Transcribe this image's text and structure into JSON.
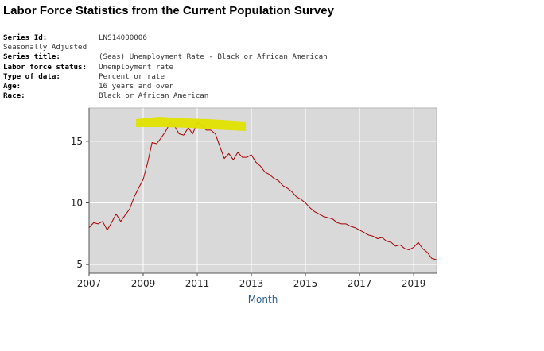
{
  "page": {
    "title": "Labor Force Statistics from the Current Population Survey"
  },
  "series_info": {
    "series_id_label": "Series Id:",
    "series_id": "LNS14000006",
    "adjustment": "Seasonally Adjusted",
    "series_title_label": "Series title:",
    "series_title": "(Seas) Unemployment Rate - Black or African American",
    "lf_status_label": "Labor force status:",
    "lf_status": "Unemployment rate",
    "data_type_label": "Type of data:",
    "data_type": "Percent or rate",
    "age_label": "Age:",
    "age": "16 years and over",
    "race_label": "Race:",
    "race": "Black or African American"
  },
  "chart_data": {
    "type": "line",
    "title": "",
    "xlabel": "Month",
    "ylabel": "",
    "xlim": [
      2007.0,
      2019.85
    ],
    "ylim": [
      4.3,
      17.7
    ],
    "x_ticks": [
      "2007",
      "2009",
      "2011",
      "2013",
      "2015",
      "2017",
      "2019"
    ],
    "y_ticks": [
      "5",
      "10",
      "15"
    ],
    "grid": true,
    "colors": {
      "line": "#aa0000",
      "plot_bg": "#d9d9d9",
      "grid": "#ffffff",
      "highlight": "#e1e100",
      "axis_label": "#2c5f8a"
    },
    "series": [
      {
        "name": "Unemployment Rate - Black or African American",
        "x": [
          2007.0,
          2007.17,
          2007.33,
          2007.5,
          2007.67,
          2007.83,
          2008.0,
          2008.17,
          2008.33,
          2008.5,
          2008.67,
          2008.83,
          2009.0,
          2009.17,
          2009.33,
          2009.5,
          2009.67,
          2009.83,
          2010.0,
          2010.17,
          2010.33,
          2010.5,
          2010.67,
          2010.83,
          2011.0,
          2011.17,
          2011.33,
          2011.5,
          2011.67,
          2011.83,
          2012.0,
          2012.17,
          2012.33,
          2012.5,
          2012.67,
          2012.83,
          2013.0,
          2013.17,
          2013.33,
          2013.5,
          2013.67,
          2013.83,
          2014.0,
          2014.17,
          2014.33,
          2014.5,
          2014.67,
          2014.83,
          2015.0,
          2015.17,
          2015.33,
          2015.5,
          2015.67,
          2015.83,
          2016.0,
          2016.17,
          2016.33,
          2016.5,
          2016.67,
          2016.83,
          2017.0,
          2017.17,
          2017.33,
          2017.5,
          2017.67,
          2017.83,
          2018.0,
          2018.17,
          2018.33,
          2018.5,
          2018.67,
          2018.83,
          2019.0,
          2019.17,
          2019.33,
          2019.5,
          2019.67,
          2019.83
        ],
        "values": [
          8.0,
          8.4,
          8.3,
          8.5,
          7.8,
          8.4,
          9.1,
          8.5,
          9.0,
          9.5,
          10.5,
          11.2,
          11.9,
          13.3,
          14.9,
          14.8,
          15.3,
          15.8,
          16.5,
          16.2,
          15.6,
          15.5,
          16.1,
          15.6,
          16.5,
          16.3,
          15.9,
          15.9,
          15.6,
          14.6,
          13.6,
          14.0,
          13.5,
          14.1,
          13.7,
          13.7,
          13.9,
          13.3,
          13.0,
          12.5,
          12.3,
          12.0,
          11.8,
          11.4,
          11.2,
          10.9,
          10.5,
          10.3,
          10.0,
          9.6,
          9.3,
          9.1,
          8.9,
          8.8,
          8.7,
          8.4,
          8.3,
          8.3,
          8.1,
          8.0,
          7.8,
          7.6,
          7.4,
          7.3,
          7.1,
          7.2,
          6.9,
          6.8,
          6.5,
          6.6,
          6.3,
          6.2,
          6.4,
          6.8,
          6.3,
          6.0,
          5.5,
          5.4
        ]
      }
    ]
  }
}
